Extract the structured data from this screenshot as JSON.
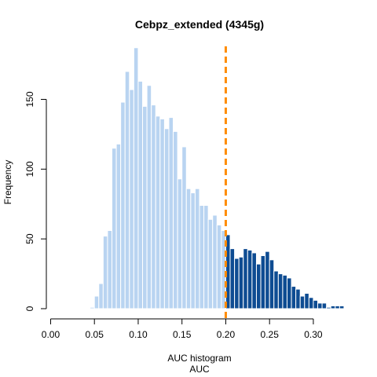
{
  "chart_data": {
    "type": "bar",
    "title": "Cebpz_extended (4345g)",
    "xlabel": "AUC histogram",
    "xlabel2": "AUC",
    "ylabel": "Frequency",
    "xlim": [
      -0.004,
      0.344
    ],
    "ylim": [
      0,
      188
    ],
    "xticks": [
      0.0,
      0.05,
      0.1,
      0.15,
      0.2,
      0.25,
      0.3
    ],
    "xtick_labels": [
      "0.00",
      "0.05",
      "0.10",
      "0.15",
      "0.20",
      "0.25",
      "0.30"
    ],
    "yticks": [
      0,
      50,
      100,
      150
    ],
    "ytick_labels": [
      "0",
      "50",
      "100",
      "150"
    ],
    "bin_start": 0.045,
    "bin_width": 0.005,
    "threshold": 0.2,
    "colors": {
      "below_threshold": "#b9d4f1",
      "above_threshold": "#0e4c92",
      "bar_border": "#ffffff",
      "threshold_line": "#ff8c00"
    },
    "values": [
      1,
      9,
      18,
      52,
      56,
      115,
      118,
      148,
      170,
      157,
      187,
      163,
      145,
      160,
      146,
      138,
      136,
      129,
      137,
      127,
      93,
      116,
      86,
      83,
      86,
      74,
      74,
      64,
      67,
      60,
      56,
      53,
      43,
      36,
      37,
      43,
      42,
      40,
      32,
      38,
      41,
      35,
      27,
      25,
      24,
      22,
      16,
      14,
      9,
      11,
      8,
      6,
      4,
      4,
      1,
      2,
      2,
      2
    ]
  }
}
